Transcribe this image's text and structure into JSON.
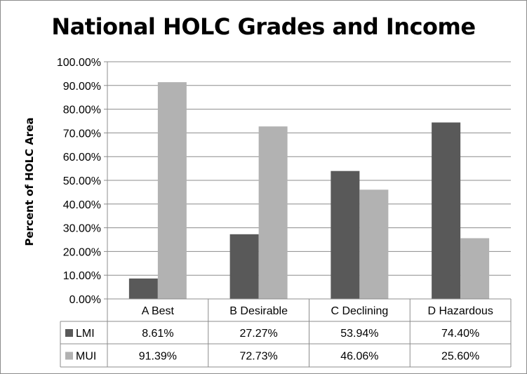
{
  "chart_data": {
    "type": "bar",
    "title": "National HOLC Grades and Income",
    "ylabel": "Percent of HOLC Area",
    "xlabel": "",
    "ylim": [
      0,
      100
    ],
    "y_ticks": [
      "0.00%",
      "10.00%",
      "20.00%",
      "30.00%",
      "40.00%",
      "50.00%",
      "60.00%",
      "70.00%",
      "80.00%",
      "90.00%",
      "100.00%"
    ],
    "grid": true,
    "legend": "data-table",
    "categories": [
      "A  Best",
      "B  Desirable",
      "C  Declining",
      "D  Hazardous"
    ],
    "series": [
      {
        "name": "LMI",
        "color": "#595959",
        "values": [
          8.61,
          27.27,
          53.94,
          74.4
        ],
        "labels": [
          "8.61%",
          "27.27%",
          "53.94%",
          "74.40%"
        ]
      },
      {
        "name": "MUI",
        "color": "#b2b2b2",
        "values": [
          91.39,
          72.73,
          46.06,
          25.6
        ],
        "labels": [
          "91.39%",
          "72.73%",
          "46.06%",
          "25.60%"
        ]
      }
    ]
  }
}
